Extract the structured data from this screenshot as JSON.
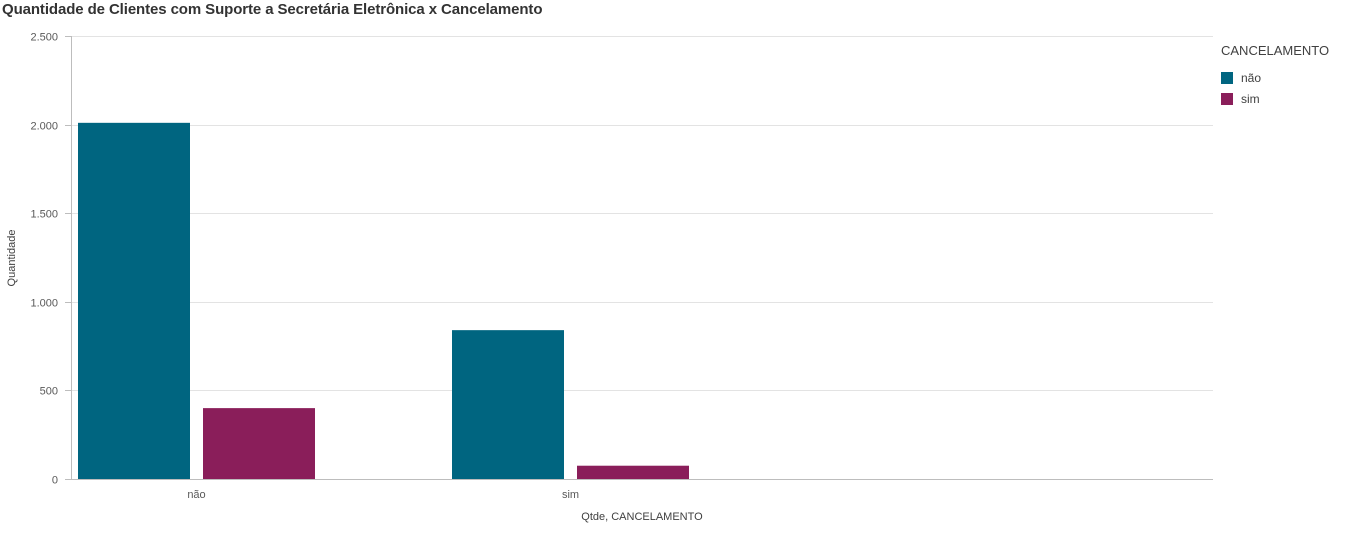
{
  "chart_data": {
    "type": "bar",
    "title": "Quantidade de Clientes com Suporte a Secretária Eletrônica x Cancelamento",
    "xlabel": "Qtde, CANCELAMENTO",
    "ylabel": "Quantidade",
    "categories": [
      "não",
      "sim"
    ],
    "series": [
      {
        "name": "não",
        "color": "#006580",
        "values": [
          2010,
          840
        ]
      },
      {
        "name": "sim",
        "color": "#8a1e5a",
        "values": [
          400,
          75
        ]
      }
    ],
    "ylim": [
      0,
      2500
    ],
    "yticks": [
      0,
      500,
      1000,
      1500,
      2000,
      2500
    ],
    "ytick_labels": [
      "0",
      "500",
      "1.000",
      "1.500",
      "2.000",
      "2.500"
    ],
    "grid": true,
    "legend": {
      "title": "CANCELAMENTO",
      "position": "right"
    }
  }
}
